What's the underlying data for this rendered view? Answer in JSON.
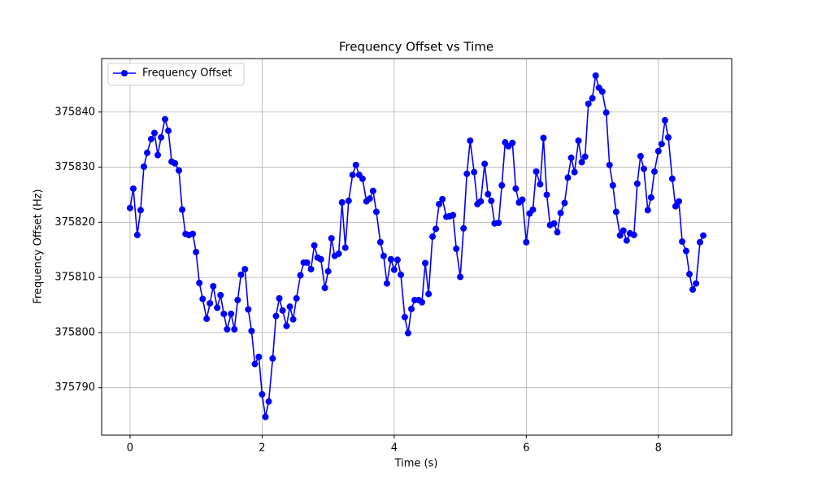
{
  "chart_data": {
    "type": "line",
    "title": "Frequency Offset vs Time",
    "x_label": "Time (s)",
    "y_label": "Frequency Offset (Hz)",
    "x": [
      0,
      0.05,
      0.11,
      0.16,
      0.21,
      0.26,
      0.32,
      0.37,
      0.42,
      0.47,
      0.53,
      0.58,
      0.63,
      0.68,
      0.74,
      0.79,
      0.84,
      0.89,
      0.95,
      1.0,
      1.05,
      1.1,
      1.16,
      1.21,
      1.26,
      1.32,
      1.37,
      1.42,
      1.47,
      1.53,
      1.58,
      1.63,
      1.68,
      1.74,
      1.79,
      1.84,
      1.89,
      1.95,
      2.0,
      2.05,
      2.1,
      2.16,
      2.21,
      2.26,
      2.31,
      2.37,
      2.42,
      2.47,
      2.52,
      2.58,
      2.63,
      2.68,
      2.74,
      2.79,
      2.84,
      2.89,
      2.95,
      3.0,
      3.05,
      3.1,
      3.16,
      3.21,
      3.26,
      3.31,
      3.37,
      3.42,
      3.47,
      3.52,
      3.58,
      3.63,
      3.68,
      3.73,
      3.79,
      3.84,
      3.89,
      3.95,
      4.0,
      4.05,
      4.1,
      4.16,
      4.21,
      4.26,
      4.31,
      4.37,
      4.42,
      4.47,
      4.52,
      4.58,
      4.63,
      4.68,
      4.73,
      4.79,
      4.84,
      4.89,
      4.94,
      5.0,
      5.05,
      5.1,
      5.15,
      5.21,
      5.26,
      5.31,
      5.37,
      5.42,
      5.47,
      5.52,
      5.58,
      5.63,
      5.68,
      5.73,
      5.79,
      5.84,
      5.89,
      5.94,
      6.0,
      6.05,
      6.1,
      6.15,
      6.21,
      6.26,
      6.31,
      6.36,
      6.42,
      6.47,
      6.52,
      6.58,
      6.63,
      6.68,
      6.73,
      6.79,
      6.84,
      6.89,
      6.94,
      7.0,
      7.05,
      7.1,
      7.15,
      7.21,
      7.26,
      7.31,
      7.36,
      7.42,
      7.47,
      7.52,
      7.57,
      7.63,
      7.68,
      7.73,
      7.78,
      7.84,
      7.89,
      7.94,
      8.0,
      8.05,
      8.1,
      8.15,
      8.21,
      8.26,
      8.31,
      8.36,
      8.42,
      8.47,
      8.52,
      8.57,
      8.63,
      8.68
    ],
    "series": [
      {
        "name": "Frequency Offset",
        "color": "#0000ff",
        "values": [
          375822.6,
          375826.1,
          375817.7,
          375822.2,
          375830.1,
          375832.6,
          375835.1,
          375836.2,
          375832.2,
          375835.4,
          375838.7,
          375836.6,
          375831.0,
          375830.7,
          375829.4,
          375822.3,
          375817.9,
          375817.7,
          375817.9,
          375814.6,
          375809.0,
          375806.1,
          375802.5,
          375805.3,
          375808.4,
          375804.5,
          375806.8,
          375803.4,
          375800.6,
          375803.4,
          375800.6,
          375805.9,
          375810.5,
          375811.5,
          375804.2,
          375800.3,
          375794.3,
          375795.6,
          375788.8,
          375784.7,
          375787.5,
          375795.3,
          375803.0,
          375806.2,
          375804.0,
          375801.2,
          375804.7,
          375802.4,
          375806.2,
          375810.4,
          375812.7,
          375812.7,
          375811.5,
          375815.8,
          375813.6,
          375813.3,
          375808.1,
          375811.1,
          375817.1,
          375813.9,
          375814.3,
          375823.6,
          375815.4,
          375823.9,
          375828.6,
          375830.4,
          375828.6,
          375827.9,
          375823.8,
          375824.3,
          375825.7,
          375821.9,
          375816.4,
          375813.9,
          375808.9,
          375813.3,
          375811.4,
          375813.2,
          375810.5,
          375802.8,
          375799.9,
          375804.3,
          375805.9,
          375805.9,
          375805.5,
          375812.6,
          375807.0,
          375817.4,
          375818.8,
          375823.3,
          375824.2,
          375821.0,
          375821.1,
          375821.3,
          375815.2,
          375810.1,
          375818.9,
          375828.8,
          375834.8,
          375829.1,
          375823.3,
          375823.8,
          375830.6,
          375825.1,
          375823.9,
          375819.8,
          375819.9,
          375826.7,
          375834.5,
          375833.8,
          375834.4,
          375826.1,
          375823.6,
          375824.1,
          375816.4,
          375821.6,
          375822.3,
          375829.2,
          375826.9,
          375835.3,
          375825.0,
          375819.5,
          375819.8,
          375818.2,
          375821.7,
          375823.5,
          375828.1,
          375831.7,
          375829.1,
          375834.8,
          375830.9,
          375831.9,
          375841.5,
          375842.5,
          375846.6,
          375844.4,
          375843.7,
          375839.9,
          375830.4,
          375826.7,
          375821.9,
          375817.6,
          375818.5,
          375816.7,
          375818.0,
          375817.7,
          375827.0,
          375832.0,
          375829.7,
          375822.2,
          375824.5,
          375829.2,
          375832.9,
          375834.2,
          375838.5,
          375835.4,
          375827.9,
          375822.9,
          375823.8,
          375816.5,
          375814.8,
          375810.6,
          375807.8,
          375808.9,
          375816.4,
          375817.6
        ]
      }
    ],
    "xlim": [
      -0.43,
      9.11
    ],
    "ylim": [
      375781.4,
      375849.7
    ],
    "xticks": [
      0,
      2,
      4,
      6,
      8
    ],
    "yticks": [
      375790,
      375800,
      375810,
      375820,
      375830,
      375840
    ],
    "grid": true,
    "legend": "upper left",
    "markers": true
  }
}
